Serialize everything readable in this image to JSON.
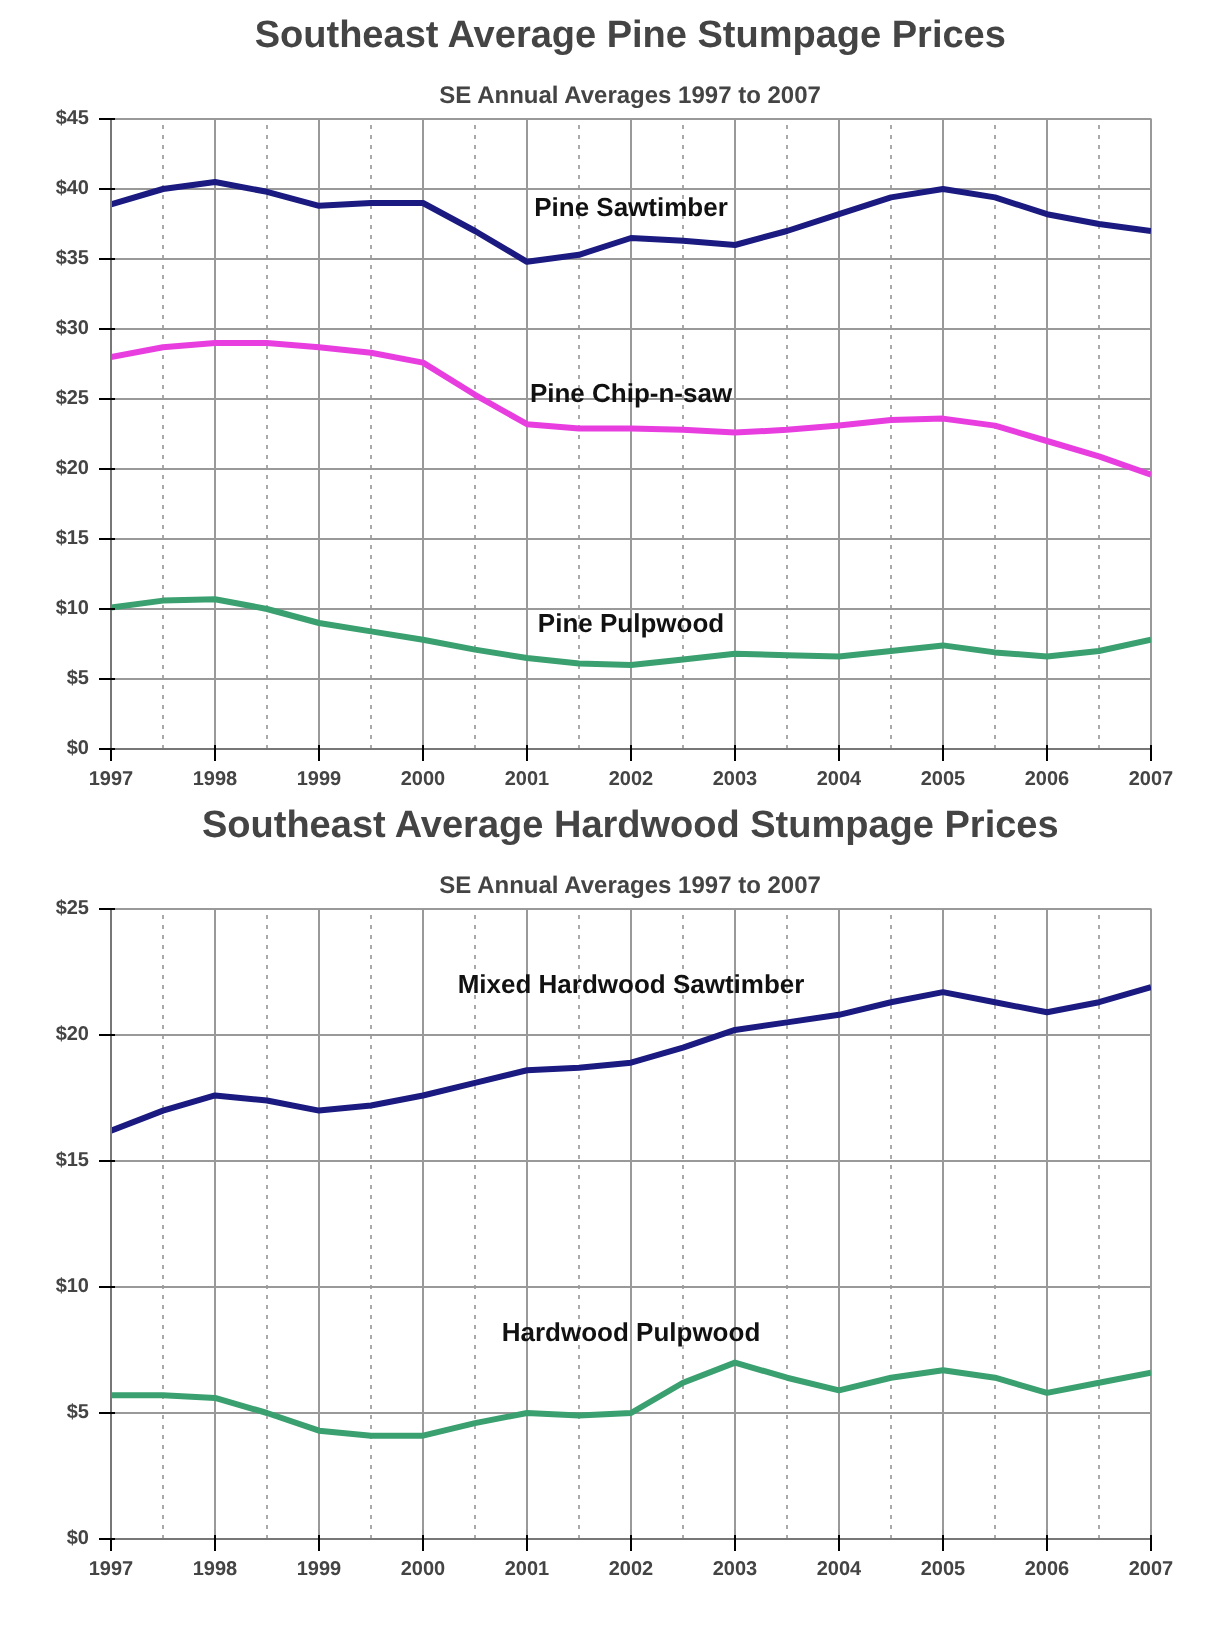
{
  "chart_data": [
    {
      "type": "line",
      "title": "Southeast Average Pine Stumpage Prices",
      "subtitle": "SE Annual Averages 1997 to 2007",
      "x": [
        1997,
        1997.5,
        1998,
        1998.5,
        1999,
        1999.5,
        2000,
        2000.5,
        2001,
        2001.5,
        2002,
        2002.5,
        2003,
        2003.5,
        2004,
        2004.5,
        2005,
        2005.5,
        2006,
        2006.5,
        2007
      ],
      "series": [
        {
          "name": "Pine Sawtimber",
          "color": "#1a1a80",
          "values": [
            38.9,
            40.0,
            40.5,
            39.8,
            38.8,
            39.0,
            39.0,
            37.0,
            34.8,
            35.3,
            36.5,
            36.3,
            36.0,
            37.0,
            38.2,
            39.4,
            40.0,
            39.4,
            38.2,
            37.5,
            37.0
          ]
        },
        {
          "name": "Pine Chip-n-saw",
          "color": "#e83ee0",
          "values": [
            28.0,
            28.7,
            29.0,
            29.0,
            28.7,
            28.3,
            27.6,
            25.3,
            23.2,
            22.9,
            22.9,
            22.8,
            22.6,
            22.8,
            23.1,
            23.5,
            23.6,
            23.1,
            22.0,
            20.9,
            19.6
          ]
        },
        {
          "name": "Pine Pulpwood",
          "color": "#3aa070",
          "values": [
            10.1,
            10.6,
            10.7,
            10.0,
            9.0,
            8.4,
            7.8,
            7.1,
            6.5,
            6.1,
            6.0,
            6.4,
            6.8,
            6.7,
            6.6,
            7.0,
            7.4,
            6.9,
            6.6,
            7.0,
            7.8
          ]
        }
      ],
      "xlim": [
        1997,
        2007
      ],
      "xticks": [
        1997,
        1998,
        1999,
        2000,
        2001,
        2002,
        2003,
        2004,
        2005,
        2006,
        2007
      ],
      "ylim": [
        0,
        45
      ],
      "yticks": [
        {
          "value": 0,
          "label": "$0"
        },
        {
          "value": 5,
          "label": "$5"
        },
        {
          "value": 10,
          "label": "$10"
        },
        {
          "value": 15,
          "label": "$15"
        },
        {
          "value": 20,
          "label": "$20"
        },
        {
          "value": 25,
          "label": "$25"
        },
        {
          "value": 30,
          "label": "$30"
        },
        {
          "value": 35,
          "label": "$35"
        },
        {
          "value": 40,
          "label": "$40"
        },
        {
          "value": 45,
          "label": "$45"
        }
      ],
      "grid": true,
      "marker": "none",
      "line_style": "solid"
    },
    {
      "type": "line",
      "title": "Southeast Average Hardwood Stumpage Prices",
      "subtitle": "SE Annual Averages 1997 to 2007",
      "x": [
        1997,
        1997.5,
        1998,
        1998.5,
        1999,
        1999.5,
        2000,
        2000.5,
        2001,
        2001.5,
        2002,
        2002.5,
        2003,
        2003.5,
        2004,
        2004.5,
        2005,
        2005.5,
        2006,
        2006.5,
        2007
      ],
      "series": [
        {
          "name": "Mixed Hardwood Sawtimber",
          "color": "#1a1a80",
          "values": [
            16.2,
            17.0,
            17.6,
            17.4,
            17.0,
            17.2,
            17.6,
            18.1,
            18.6,
            18.7,
            18.9,
            19.5,
            20.2,
            20.5,
            20.8,
            21.3,
            21.7,
            21.3,
            20.9,
            21.3,
            21.9
          ]
        },
        {
          "name": "Hardwood Pulpwood",
          "color": "#3aa070",
          "values": [
            5.7,
            5.7,
            5.6,
            5.0,
            4.3,
            4.1,
            4.1,
            4.6,
            5.0,
            4.9,
            5.0,
            6.2,
            7.0,
            6.4,
            5.9,
            6.4,
            6.7,
            6.4,
            5.8,
            6.2,
            6.6
          ]
        }
      ],
      "xlim": [
        1997,
        2007
      ],
      "xticks": [
        1997,
        1998,
        1999,
        2000,
        2001,
        2002,
        2003,
        2004,
        2005,
        2006,
        2007
      ],
      "ylim": [
        0,
        25
      ],
      "yticks": [
        {
          "value": 0,
          "label": "$0"
        },
        {
          "value": 5,
          "label": "$5"
        },
        {
          "value": 10,
          "label": "$10"
        },
        {
          "value": 15,
          "label": "$15"
        },
        {
          "value": 20,
          "label": "$20"
        },
        {
          "value": 25,
          "label": "$25"
        }
      ],
      "grid": true,
      "marker": "none",
      "line_style": "solid"
    }
  ]
}
